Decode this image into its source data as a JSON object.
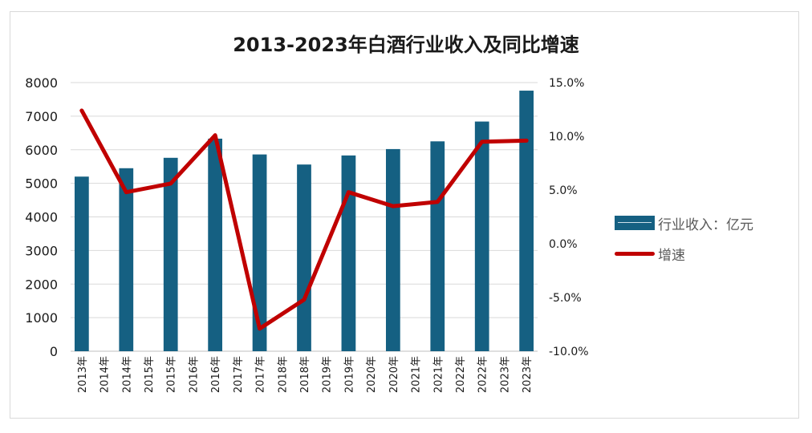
{
  "chart_data": {
    "type": "bar+line",
    "title": "2013-2023年白酒行业收入及同比增速",
    "categories": [
      "2013年",
      "2014年",
      "2014年",
      "2015年",
      "2015年",
      "2016年",
      "2016年",
      "2017年",
      "2017年",
      "2018年",
      "2018年",
      "2019年",
      "2019年",
      "2020年",
      "2020年",
      "2021年",
      "2021年",
      "2022年",
      "2022年",
      "2023年",
      "2023年"
    ],
    "series": [
      {
        "name": "行业收入：亿元",
        "type": "bar",
        "axis": "left",
        "color": "#156082",
        "values": [
          5200,
          null,
          5450,
          null,
          5760,
          null,
          6330,
          null,
          5860,
          null,
          5560,
          null,
          5830,
          null,
          6020,
          null,
          6250,
          null,
          6840,
          null,
          7760
        ]
      },
      {
        "name": "增速",
        "type": "line",
        "axis": "right",
        "color": "#c00000",
        "values": [
          12.4,
          null,
          4.8,
          null,
          5.6,
          null,
          10.1,
          null,
          -7.9,
          null,
          -5.2,
          null,
          4.8,
          null,
          3.5,
          null,
          3.9,
          null,
          9.5,
          null,
          9.6
        ]
      }
    ],
    "y_left": {
      "min": 0,
      "max": 8000,
      "ticks": [
        "0",
        "1000",
        "2000",
        "3000",
        "4000",
        "5000",
        "6000",
        "7000",
        "8000"
      ]
    },
    "y_right": {
      "min": -10,
      "max": 15,
      "ticks": [
        "-10.0%",
        "-5.0%",
        "0.0%",
        "5.0%",
        "10.0%",
        "15.0%"
      ]
    },
    "grid": "horizontal",
    "legend_position": "right"
  }
}
